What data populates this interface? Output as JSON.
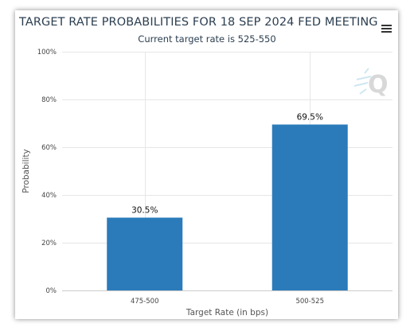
{
  "title": "TARGET RATE PROBABILITIES FOR 18 SEP 2024 FED MEETING",
  "subtitle": "Current target rate is 525-550",
  "watermark": "Q",
  "menu_icon": "hamburger-menu-icon",
  "colors": {
    "bar": "#2b7bba",
    "grid": "#e6e6e6",
    "axis": "#cccccc",
    "title": "#2b3e50",
    "watermark": "#d8d8d8"
  },
  "chart_data": {
    "type": "bar",
    "title": "TARGET RATE PROBABILITIES FOR 18 SEP 2024 FED MEETING",
    "subtitle": "Current target rate is 525-550",
    "xlabel": "Target Rate (in bps)",
    "ylabel": "Probability",
    "categories": [
      "475-500",
      "500-525"
    ],
    "values": [
      30.5,
      69.5
    ],
    "data_labels": [
      "30.5%",
      "69.5%"
    ],
    "ylim": [
      0,
      100
    ],
    "yticks": [
      0,
      20,
      40,
      60,
      80,
      100
    ],
    "ytick_labels": [
      "0%",
      "20%",
      "40%",
      "60%",
      "80%",
      "100%"
    ],
    "grid": true,
    "legend": "none"
  }
}
